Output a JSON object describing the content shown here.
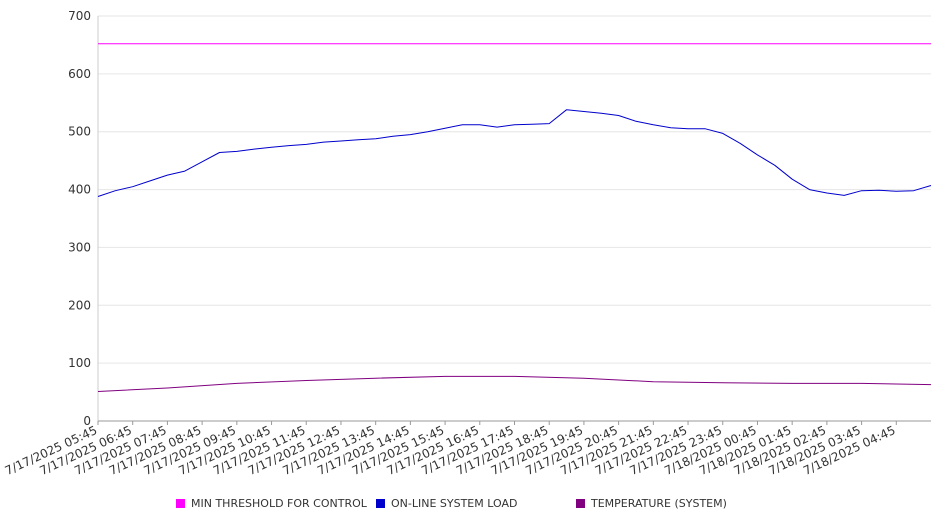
{
  "chart_data": {
    "type": "line",
    "title": "",
    "xlabel": "",
    "ylabel": "",
    "ylim": [
      0,
      700
    ],
    "y_ticks": [
      "0",
      "100",
      "200",
      "300",
      "400",
      "500",
      "600",
      "700"
    ],
    "x_tick_labels": [
      "7/17/2025 05:45",
      "7/17/2025 06:45",
      "7/17/2025 07:45",
      "7/17/2025 08:45",
      "7/17/2025 09:45",
      "7/17/2025 10:45",
      "7/17/2025 11:45",
      "7/17/2025 12:45",
      "7/17/2025 13:45",
      "7/17/2025 14:45",
      "7/17/2025 15:45",
      "7/17/2025 16:45",
      "7/17/2025 17:45",
      "7/17/2025 18:45",
      "7/17/2025 19:45",
      "7/17/2025 20:45",
      "7/17/2025 21:45",
      "7/17/2025 22:45",
      "7/17/2025 23:45",
      "7/18/2025 00:45",
      "7/18/2025 01:45",
      "7/18/2025 02:45",
      "7/18/2025 03:45",
      "7/18/2025 04:45"
    ],
    "grid": true,
    "legend_position": "bottom",
    "series": [
      {
        "name": "MIN THRESHOLD FOR CONTROL",
        "color": "#ff00ff",
        "x": [
          "7/17/2025 05:45",
          "7/18/2025 05:45"
        ],
        "values": [
          652,
          652
        ]
      },
      {
        "name": "ON-LINE SYSTEM LOAD",
        "color": "#0000cc",
        "x": [
          "7/17/2025 05:45",
          "7/17/2025 06:15",
          "7/17/2025 06:45",
          "7/17/2025 07:15",
          "7/17/2025 07:45",
          "7/17/2025 08:15",
          "7/17/2025 08:45",
          "7/17/2025 09:15",
          "7/17/2025 09:45",
          "7/17/2025 10:15",
          "7/17/2025 10:45",
          "7/17/2025 11:15",
          "7/17/2025 11:45",
          "7/17/2025 12:15",
          "7/17/2025 12:45",
          "7/17/2025 13:15",
          "7/17/2025 13:45",
          "7/17/2025 14:15",
          "7/17/2025 14:45",
          "7/17/2025 15:15",
          "7/17/2025 15:45",
          "7/17/2025 16:15",
          "7/17/2025 16:45",
          "7/17/2025 17:15",
          "7/17/2025 17:45",
          "7/17/2025 18:15",
          "7/17/2025 18:45",
          "7/17/2025 19:15",
          "7/17/2025 19:45",
          "7/17/2025 20:15",
          "7/17/2025 20:45",
          "7/17/2025 21:15",
          "7/17/2025 21:45",
          "7/17/2025 22:15",
          "7/17/2025 22:45",
          "7/17/2025 23:15",
          "7/17/2025 23:45",
          "7/18/2025 00:15",
          "7/18/2025 00:45",
          "7/18/2025 01:15",
          "7/18/2025 01:45",
          "7/18/2025 02:15",
          "7/18/2025 02:45",
          "7/18/2025 03:15",
          "7/18/2025 03:45",
          "7/18/2025 04:15",
          "7/18/2025 04:45",
          "7/18/2025 05:15",
          "7/18/2025 05:45"
        ],
        "values": [
          388,
          398,
          405,
          415,
          425,
          432,
          448,
          464,
          466,
          470,
          473,
          476,
          478,
          482,
          484,
          486,
          488,
          492,
          495,
          500,
          506,
          512,
          512,
          508,
          512,
          513,
          514,
          538,
          535,
          532,
          528,
          518,
          512,
          507,
          505,
          505,
          497,
          480,
          460,
          442,
          418,
          400,
          394,
          390,
          398,
          399,
          397,
          398,
          407
        ]
      },
      {
        "name": "TEMPERATURE (SYSTEM)",
        "color": "#800080",
        "x": [
          "7/17/2025 05:45",
          "7/17/2025 07:45",
          "7/17/2025 09:45",
          "7/17/2025 11:45",
          "7/17/2025 13:45",
          "7/17/2025 15:45",
          "7/17/2025 17:45",
          "7/17/2025 19:45",
          "7/17/2025 21:45",
          "7/17/2025 23:45",
          "7/18/2025 01:45",
          "7/18/2025 03:45",
          "7/18/2025 05:45"
        ],
        "values": [
          51,
          57,
          65,
          70,
          74,
          77,
          77,
          74,
          68,
          66,
          65,
          65,
          63
        ]
      }
    ]
  }
}
